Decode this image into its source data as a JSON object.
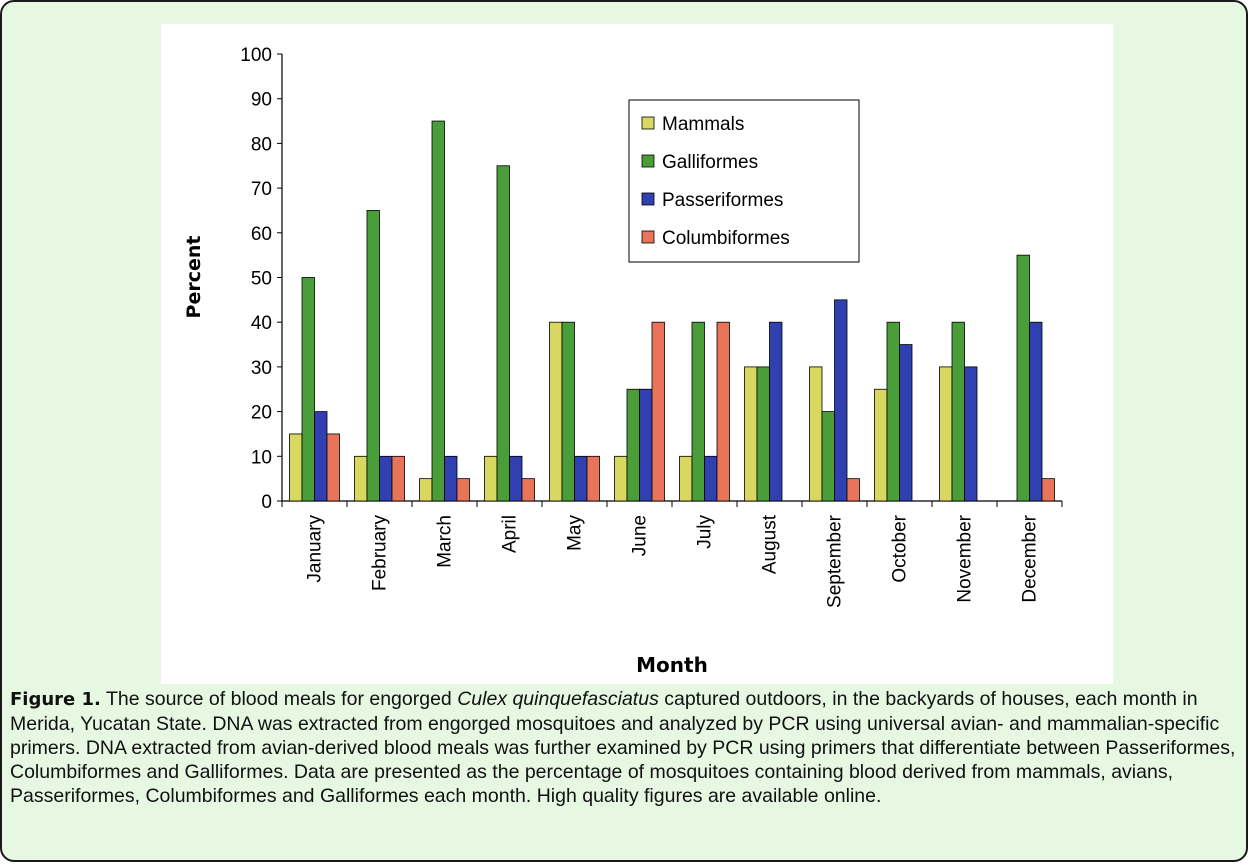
{
  "figure": {
    "label": "Figure 1.",
    "caption_pre": "The source of blood meals for engorged ",
    "caption_italic": "Culex quinquefasciatus",
    "caption_post": " captured outdoors, in the backyards of houses, each month in Merida, Yucatan State. DNA was extracted from engorged mosquitoes and analyzed by PCR using universal avian- and mammalian-specific primers. DNA extracted from avian-derived blood meals was further examined by PCR using primers that differentiate between Passeriformes, Columbiformes and Galliformes. Data are presented as the percentage of mosquitoes containing blood derived from mammals, avians, Passeriformes, Columbiformes and Galliformes each month.  High quality figures are available online."
  },
  "colors": {
    "panel_bg": "#e6f7e2",
    "Mammals": "#d8d860",
    "Galliformes": "#4a9e3a",
    "Passeriformes": "#3040b0",
    "Columbiformes": "#e8755a"
  },
  "chart_data": {
    "type": "bar",
    "xlabel": "Month",
    "ylabel": "Percent",
    "ylim": [
      0,
      100
    ],
    "yticks": [
      0,
      10,
      20,
      30,
      40,
      50,
      60,
      70,
      80,
      90,
      100
    ],
    "grid": false,
    "legend_position": "top-right",
    "categories": [
      "January",
      "February",
      "March",
      "April",
      "May",
      "June",
      "July",
      "August",
      "September",
      "October",
      "November",
      "December"
    ],
    "series": [
      {
        "name": "Mammals",
        "values": [
          15,
          10,
          5,
          10,
          40,
          10,
          10,
          30,
          30,
          25,
          30,
          0
        ]
      },
      {
        "name": "Galliformes",
        "values": [
          50,
          65,
          85,
          75,
          40,
          25,
          40,
          30,
          20,
          40,
          40,
          55
        ]
      },
      {
        "name": "Passeriformes",
        "values": [
          20,
          10,
          10,
          10,
          10,
          25,
          10,
          40,
          45,
          35,
          30,
          40
        ]
      },
      {
        "name": "Columbiformes",
        "values": [
          15,
          10,
          5,
          5,
          10,
          40,
          40,
          0,
          5,
          0,
          0,
          5
        ]
      }
    ]
  }
}
